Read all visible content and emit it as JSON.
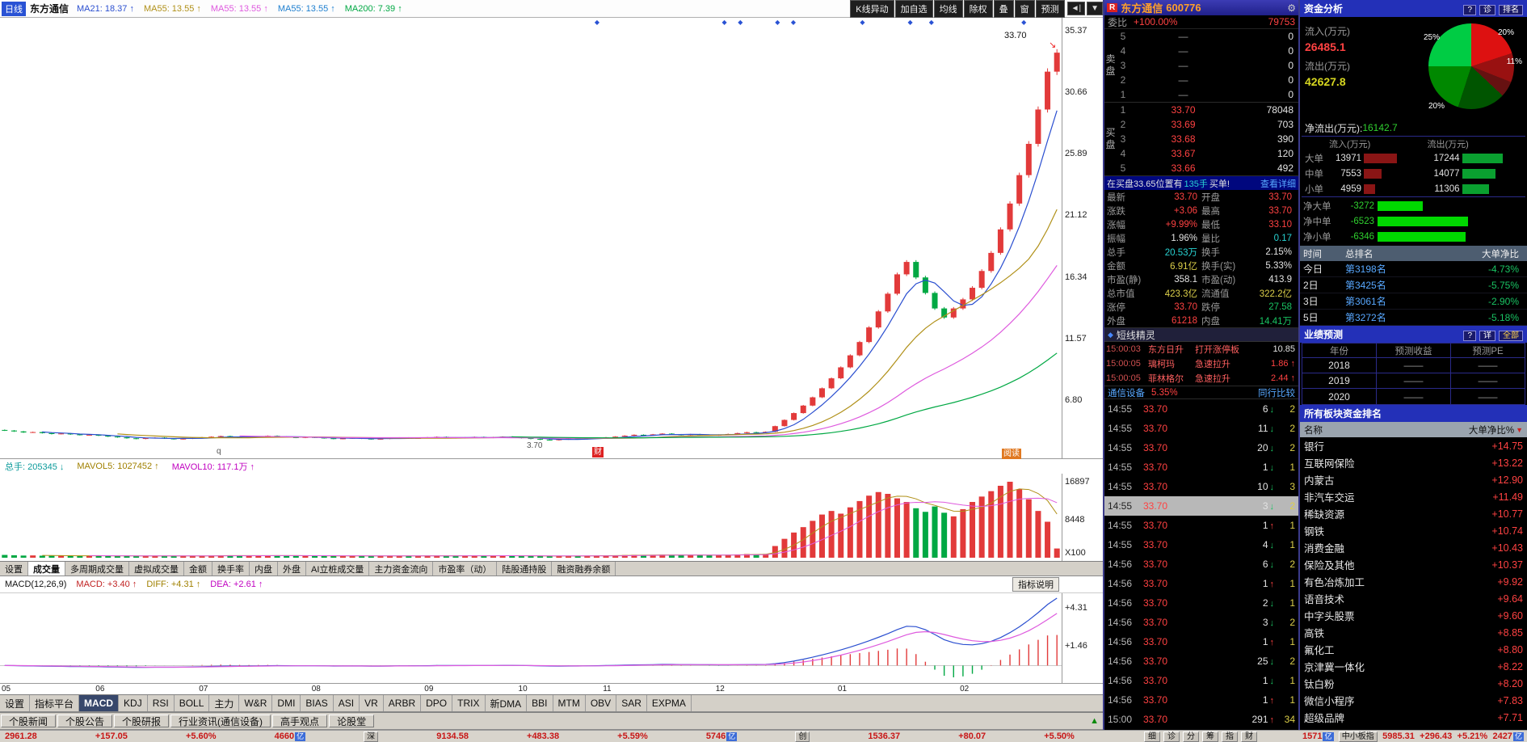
{
  "top_bar": {
    "period": "日线",
    "stock_name": "东方通信",
    "ma_items": [
      {
        "text": "MA21: 18.37 ↑",
        "color": "#2b4fd0"
      },
      {
        "text": "MA55: 13.55 ↑",
        "color": "#b09018"
      },
      {
        "text": "MA55: 13.55 ↑",
        "color": "#de5ade"
      },
      {
        "text": "MA55: 13.55 ↑",
        "color": "#2080d0"
      },
      {
        "text": "MA200: 7.39 ↑",
        "color": "#00a843"
      }
    ],
    "buttons": [
      "K线异动",
      "加自选",
      "均线",
      "除权",
      "叠",
      "窗",
      "预测"
    ]
  },
  "volume_pane": {
    "header": [
      {
        "text": "总手: 205345 ↓",
        "color": "#0a9a9a"
      },
      {
        "text": "MAVOL5: 1027452 ↑",
        "color": "#a08000"
      },
      {
        "text": "MAVOL10: 117.1万 ↑",
        "color": "#c000c0"
      }
    ],
    "axis": [
      "16897",
      "8448"
    ],
    "unit": "X100"
  },
  "func_tabs": {
    "items": [
      "设置",
      "成交量",
      "多周期成交量",
      "虚拟成交量",
      "金额",
      "换手率",
      "内盘",
      "外盘",
      "AI立桩成交量",
      "主力资金流向",
      "市盈率（动）",
      "陆股通持股",
      "融资融券余额"
    ],
    "active": 1
  },
  "macd_pane": {
    "title": "MACD(12,26,9)",
    "items": [
      {
        "text": "MACD: +3.40 ↑",
        "color": "#c02020"
      },
      {
        "text": "DIFF: +4.31 ↑",
        "color": "#a08000"
      },
      {
        "text": "DEA: +2.61 ↑",
        "color": "#c000c0"
      }
    ],
    "axis": [
      "+4.31",
      "+1.46"
    ],
    "help_button": "指标说明"
  },
  "indicator_tabs": {
    "items": [
      "设置",
      "指标平台",
      "MACD",
      "KDJ",
      "RSI",
      "BOLL",
      "主力",
      "W&R",
      "DMI",
      "BIAS",
      "ASI",
      "VR",
      "ARBR",
      "DPO",
      "TRIX",
      "新DMA",
      "BBI",
      "MTM",
      "OBV",
      "SAR",
      "EXPMA"
    ],
    "active": 2
  },
  "news_tabs": [
    "个股新闻",
    "个股公告",
    "个股研报",
    "行业资讯(通信设备)",
    "高手观点",
    "论股堂"
  ],
  "status_bar": {
    "items": [
      {
        "kind": "num",
        "text": "2961.28"
      },
      {
        "kind": "num",
        "text": "+157.05"
      },
      {
        "kind": "num",
        "text": "+5.60%"
      },
      {
        "kind": "amount",
        "text": "4660",
        "unit": "亿"
      },
      {
        "kind": "tag",
        "text": "深"
      },
      {
        "kind": "num",
        "text": "9134.58"
      },
      {
        "kind": "num",
        "text": "+483.38"
      },
      {
        "kind": "num",
        "text": "+5.59%"
      },
      {
        "kind": "amount",
        "text": "5746",
        "unit": "亿"
      },
      {
        "kind": "tag",
        "text": "创"
      },
      {
        "kind": "num",
        "text": "1536.37"
      },
      {
        "kind": "num",
        "text": "+80.07"
      },
      {
        "kind": "num",
        "text": "+5.50%"
      }
    ],
    "mini_tabs": [
      "细",
      "诊",
      "分",
      "筹",
      "指",
      "财"
    ],
    "right_items": [
      {
        "kind": "amount",
        "text": "1571",
        "unit": "亿"
      },
      {
        "kind": "tag",
        "text": "中小板指"
      },
      {
        "kind": "num",
        "text": "5985.31"
      },
      {
        "kind": "num",
        "text": "+296.43"
      },
      {
        "kind": "num",
        "text": "+5.21%"
      },
      {
        "kind": "amount",
        "text": "2427",
        "unit": "亿"
      }
    ]
  },
  "quote_panel": {
    "corner_badge": "R",
    "title": "东方通信",
    "code": "600776",
    "weibi_label": "委比",
    "weibi_value": "+100.00%",
    "weicha_value": "79753",
    "sell_label": "卖盘",
    "buy_label": "买盘",
    "sell_levels": [
      {
        "n": "5",
        "price": "—",
        "vol": "0"
      },
      {
        "n": "4",
        "price": "—",
        "vol": "0"
      },
      {
        "n": "3",
        "price": "—",
        "vol": "0"
      },
      {
        "n": "2",
        "price": "—",
        "vol": "0"
      },
      {
        "n": "1",
        "price": "—",
        "vol": "0"
      }
    ],
    "buy_levels": [
      {
        "n": "1",
        "price": "33.70",
        "vol": "78048"
      },
      {
        "n": "2",
        "price": "33.69",
        "vol": "703"
      },
      {
        "n": "3",
        "price": "33.68",
        "vol": "390"
      },
      {
        "n": "4",
        "price": "33.67",
        "vol": "120"
      },
      {
        "n": "5",
        "price": "33.66",
        "vol": "492"
      }
    ],
    "notice": {
      "pre": "在买盘33.65位置有",
      "mid": "135手",
      "post": "买单!",
      "link": "查看详细"
    },
    "stats": [
      {
        "l": "最新",
        "v": "33.70",
        "c": "up",
        "l2": "开盘",
        "v2": "33.70",
        "c2": "up"
      },
      {
        "l": "涨跌",
        "v": "+3.06",
        "c": "up",
        "l2": "最高",
        "v2": "33.70",
        "c2": "up"
      },
      {
        "l": "涨幅",
        "v": "+9.99%",
        "c": "up",
        "l2": "最低",
        "v2": "33.10",
        "c2": "up"
      },
      {
        "l": "振幅",
        "v": "1.96%",
        "c": "white",
        "l2": "量比",
        "v2": "0.17",
        "c2": "cyan"
      },
      {
        "l": "总手",
        "v": "20.53万",
        "c": "cyan",
        "l2": "换手",
        "v2": "2.15%",
        "c2": "white"
      },
      {
        "l": "金额",
        "v": "6.91亿",
        "c": "yellow",
        "l2": "换手(实)",
        "v2": "5.33%",
        "c2": "white"
      },
      {
        "l": "市盈(静)",
        "v": "358.1",
        "c": "white",
        "l2": "市盈(动)",
        "v2": "413.9",
        "c2": "white"
      },
      {
        "l": "总市值",
        "v": "423.3亿",
        "c": "yellow",
        "l2": "流通值",
        "v2": "322.2亿",
        "c2": "yellow"
      },
      {
        "l": "涨停",
        "v": "33.70",
        "c": "up",
        "l2": "跌停",
        "v2": "27.58",
        "c2": "down"
      },
      {
        "l": "外盘",
        "v": "61218",
        "c": "up",
        "l2": "内盘",
        "v2": "14.41万",
        "c2": "down"
      }
    ],
    "sprite": {
      "header": "短线精灵",
      "rows": [
        {
          "time": "15:00:03",
          "name": "东方日升",
          "event": "打开涨停板",
          "value": "10.85",
          "vc": "white"
        },
        {
          "time": "15:00:05",
          "name": "璃柯玛",
          "event": "急速拉升",
          "value": "1.86 ↑",
          "vc": "up"
        },
        {
          "time": "15:00:05",
          "name": "菲林格尔",
          "event": "急速拉升",
          "value": "2.44 ↑",
          "vc": "up"
        }
      ]
    },
    "industry": {
      "name": "通信设备",
      "pct": "5.35%",
      "link": "同行比较"
    },
    "selected_tick": 5,
    "ticks": [
      {
        "time": "14:55",
        "price": "33.70",
        "vol": "6",
        "dir": "down",
        "n": "2"
      },
      {
        "time": "14:55",
        "price": "33.70",
        "vol": "11",
        "dir": "down",
        "n": "2"
      },
      {
        "time": "14:55",
        "price": "33.70",
        "vol": "20",
        "dir": "down",
        "n": "2"
      },
      {
        "time": "14:55",
        "price": "33.70",
        "vol": "1",
        "dir": "down",
        "n": "1"
      },
      {
        "time": "14:55",
        "price": "33.70",
        "vol": "10",
        "dir": "down",
        "n": "3"
      },
      {
        "time": "14:55",
        "price": "33.70",
        "vol": "3",
        "dir": "down",
        "n": "2"
      },
      {
        "time": "14:55",
        "price": "33.70",
        "vol": "1",
        "dir": "up",
        "n": "1"
      },
      {
        "time": "14:55",
        "price": "33.70",
        "vol": "4",
        "dir": "down",
        "n": "1"
      },
      {
        "time": "14:56",
        "price": "33.70",
        "vol": "6",
        "dir": "down",
        "n": "2"
      },
      {
        "time": "14:56",
        "price": "33.70",
        "vol": "1",
        "dir": "up",
        "n": "1"
      },
      {
        "time": "14:56",
        "price": "33.70",
        "vol": "2",
        "dir": "down",
        "n": "1"
      },
      {
        "time": "14:56",
        "price": "33.70",
        "vol": "3",
        "dir": "down",
        "n": "2"
      },
      {
        "time": "14:56",
        "price": "33.70",
        "vol": "1",
        "dir": "up",
        "n": "1"
      },
      {
        "time": "14:56",
        "price": "33.70",
        "vol": "25",
        "dir": "down",
        "n": "2"
      },
      {
        "time": "14:56",
        "price": "33.70",
        "vol": "1",
        "dir": "down",
        "n": "1"
      },
      {
        "time": "14:56",
        "price": "33.70",
        "vol": "1",
        "dir": "up",
        "n": "1"
      },
      {
        "time": "15:00",
        "price": "33.70",
        "vol": "291",
        "dir": "up",
        "n": "34"
      }
    ]
  },
  "fund_panel": {
    "header": "资金分析",
    "header_buttons": [
      "?",
      "诊",
      "排名"
    ],
    "inflow_label": "流入(万元)",
    "inflow_value": "26485.1",
    "outflow_label": "流出(万元)",
    "outflow_value": "42627.8",
    "net_label": "净流出(万元):",
    "net_value": "16142.7",
    "pie": {
      "slices": [
        {
          "pct": 20,
          "color": "#dd1111",
          "label": "20%"
        },
        {
          "pct": 11,
          "color": "#991111",
          "label": "11%"
        },
        {
          "pct": 6,
          "color": "#661111",
          "label": ""
        },
        {
          "pct": 18,
          "color": "#005500",
          "label": ""
        },
        {
          "pct": 20,
          "color": "#008800",
          "label": "20%"
        },
        {
          "pct": 25,
          "color": "#00cc44",
          "label": "25%"
        }
      ]
    },
    "flow_table": {
      "headers": [
        "流入(万元)",
        "流出(万元)"
      ],
      "rows": [
        {
          "label": "大单",
          "in": "13971",
          "out": "17244"
        },
        {
          "label": "中单",
          "in": "7553",
          "out": "14077"
        },
        {
          "label": "小单",
          "in": "4959",
          "out": "11306"
        }
      ]
    },
    "net_rows": [
      {
        "label": "净大单",
        "value": "-3272"
      },
      {
        "label": "净中单",
        "value": "-6523"
      },
      {
        "label": "净小单",
        "value": "-6346"
      }
    ],
    "rank_table": {
      "headers": [
        "时间",
        "总排名",
        "大单净比"
      ],
      "rows": [
        {
          "time": "今日",
          "rank": "第3198名",
          "pct": "-4.73%"
        },
        {
          "time": "2日",
          "rank": "第3425名",
          "pct": "-5.75%"
        },
        {
          "time": "3日",
          "rank": "第3061名",
          "pct": "-2.90%"
        },
        {
          "time": "5日",
          "rank": "第3272名",
          "pct": "-5.18%"
        }
      ]
    },
    "forecast": {
      "header": "业绩预测",
      "buttons": [
        "?",
        "详",
        "全部"
      ],
      "headers": [
        "年份",
        "预测收益",
        "预测PE"
      ],
      "rows": [
        {
          "year": "2018",
          "eps": "——",
          "pe": "——"
        },
        {
          "year": "2019",
          "eps": "——",
          "pe": "——"
        },
        {
          "year": "2020",
          "eps": "——",
          "pe": "——"
        }
      ]
    },
    "sector_rank": {
      "header": "所有板块资金排名",
      "col_name": "名称",
      "col_value": "大单净比%",
      "rows": [
        {
          "name": "银行",
          "value": "+14.75"
        },
        {
          "name": "互联网保险",
          "value": "+13.22"
        },
        {
          "name": "内蒙古",
          "value": "+12.90"
        },
        {
          "name": "非汽车交运",
          "value": "+11.49"
        },
        {
          "name": "稀缺资源",
          "value": "+10.77"
        },
        {
          "name": "钢铁",
          "value": "+10.74"
        },
        {
          "name": "消费金融",
          "value": "+10.43"
        },
        {
          "name": "保险及其他",
          "value": "+10.37"
        },
        {
          "name": "有色冶炼加工",
          "value": "+9.92"
        },
        {
          "name": "语音技术",
          "value": "+9.64"
        },
        {
          "name": "中字头股票",
          "value": "+9.60"
        },
        {
          "name": "高铁",
          "value": "+8.85"
        },
        {
          "name": "氟化工",
          "value": "+8.80"
        },
        {
          "name": "京津冀一体化",
          "value": "+8.22"
        },
        {
          "name": "钛白粉",
          "value": "+8.20"
        },
        {
          "name": "微信小程序",
          "value": "+7.83"
        },
        {
          "name": "超级品牌",
          "value": "+7.71"
        }
      ]
    }
  },
  "chart_data": {
    "type": "candlestick",
    "title": "东方通信 600776 日线",
    "months": [
      "05",
      "06",
      "07",
      "08",
      "09",
      "10",
      "11",
      "12",
      "01",
      "02"
    ],
    "month_start_index": [
      0,
      10,
      21,
      33,
      45,
      55,
      64,
      76,
      89,
      102
    ],
    "price_axis": [
      "35.37",
      "30.66",
      "25.89",
      "21.12",
      "16.34",
      "11.57",
      "6.80"
    ],
    "y_range": [
      2.3,
      36.4
    ],
    "closes": [
      4.45,
      4.38,
      4.3,
      4.33,
      4.25,
      4.18,
      4.22,
      4.15,
      4.1,
      4.12,
      4.05,
      3.98,
      3.92,
      3.85,
      3.8,
      3.86,
      3.9,
      3.83,
      3.78,
      3.82,
      3.88,
      3.92,
      3.97,
      4.02,
      3.96,
      3.9,
      3.94,
      3.99,
      4.04,
      3.98,
      3.93,
      3.89,
      3.94,
      3.9,
      3.85,
      3.8,
      3.84,
      3.88,
      3.82,
      3.78,
      3.81,
      3.86,
      3.9,
      3.85,
      3.87,
      3.92,
      3.96,
      3.9,
      3.86,
      3.91,
      3.95,
      3.89,
      3.93,
      3.97,
      3.92,
      3.86,
      3.8,
      3.74,
      3.7,
      3.76,
      3.82,
      3.78,
      3.84,
      3.88,
      3.92,
      3.98,
      4.05,
      4.12,
      4.08,
      4.15,
      4.21,
      4.15,
      4.1,
      4.16,
      4.12,
      4.08,
      4.12,
      4.18,
      4.25,
      4.32,
      4.28,
      4.35,
      4.79,
      5.27,
      5.8,
      6.38,
      7.02,
      7.72,
      8.49,
      9.34,
      10.27,
      11.3,
      12.43,
      13.67,
      15.04,
      16.54,
      17.5,
      16.3,
      15.1,
      13.9,
      13.2,
      13.9,
      14.6,
      15.5,
      16.8,
      18.2,
      20.02,
      22.02,
      24.22,
      26.64,
      29.3,
      32.23,
      33.7
    ],
    "volumes": [
      620,
      540,
      480,
      510,
      450,
      430,
      470,
      420,
      400,
      440,
      460,
      420,
      390,
      410,
      380,
      400,
      430,
      390,
      370,
      400,
      420,
      450,
      470,
      500,
      460,
      430,
      450,
      480,
      510,
      470,
      440,
      420,
      450,
      430,
      400,
      380,
      410,
      440,
      400,
      370,
      390,
      420,
      450,
      410,
      430,
      440,
      470,
      430,
      400,
      440,
      460,
      420,
      450,
      480,
      440,
      410,
      380,
      350,
      330,
      390,
      430,
      400,
      440,
      460,
      480,
      520,
      580,
      640,
      560,
      620,
      680,
      600,
      560,
      610,
      570,
      540,
      600,
      660,
      740,
      820,
      760,
      840,
      2600,
      4200,
      5600,
      6800,
      8200,
      9600,
      10400,
      9800,
      11200,
      12600,
      13800,
      14600,
      14200,
      13200,
      12400,
      11000,
      10200,
      11400,
      10000,
      9200,
      10800,
      12400,
      13600,
      14800,
      16000,
      16897,
      15200,
      13000,
      10400,
      8000,
      2053
    ],
    "vol_axis": [
      16897,
      8448
    ],
    "macd_axis": [
      4.31,
      1.46
    ],
    "last_price": 33.7,
    "period_low": 3.7,
    "event_marks": [
      0.56,
      0.68,
      0.695,
      0.73,
      0.745,
      0.81,
      0.855,
      0.875,
      0.962
    ],
    "annotations": {
      "last_price": "33.70",
      "low": "3.70",
      "q": "q",
      "badge1": "财",
      "badge2": "阅读"
    }
  }
}
